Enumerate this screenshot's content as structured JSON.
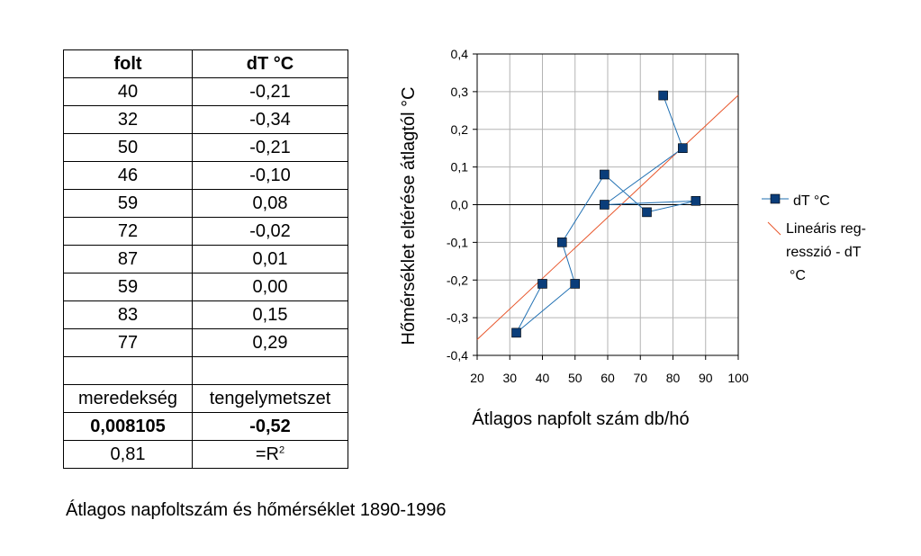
{
  "table": {
    "header": [
      "folt",
      "dT °C"
    ],
    "rows": [
      [
        "40",
        "-0,21"
      ],
      [
        "32",
        "-0,34"
      ],
      [
        "50",
        "-0,21"
      ],
      [
        "46",
        "-0,10"
      ],
      [
        "59",
        "0,08"
      ],
      [
        "72",
        "-0,02"
      ],
      [
        "87",
        "0,01"
      ],
      [
        "59",
        "0,00"
      ],
      [
        "83",
        "0,15"
      ],
      [
        "77",
        "0,29"
      ],
      [
        "",
        ""
      ]
    ],
    "stats_labels": [
      "meredekség",
      "tengelymetszet"
    ],
    "stats_values": [
      "0,008105",
      "-0,52"
    ],
    "r2_value": "0,81",
    "r2_label_prefix": "=R",
    "r2_label_sup": "2"
  },
  "caption": "Átlagos napfoltszám és hőmérséklet 1890-1996",
  "chart_data": {
    "type": "scatter",
    "xlabel": "Átlagos napfolt szám db/hó",
    "ylabel": "Hőmérséklet eltérése átlagtól °C",
    "xlim": [
      20,
      100
    ],
    "ylim": [
      -0.4,
      0.4
    ],
    "x_ticks": [
      20,
      30,
      40,
      50,
      60,
      70,
      80,
      90,
      100
    ],
    "y_ticks": [
      -0.4,
      -0.3,
      -0.2,
      -0.1,
      0.0,
      0.1,
      0.2,
      0.3,
      0.4
    ],
    "x_tick_labels": [
      "20",
      "30",
      "40",
      "50",
      "60",
      "70",
      "80",
      "90",
      "100"
    ],
    "y_tick_labels": [
      "-0,4",
      "-0,3",
      "-0,2",
      "-0,1",
      "0,0",
      "0,1",
      "0,2",
      "0,3",
      "0,4"
    ],
    "grid": true,
    "legend_position": "right",
    "series": [
      {
        "name": "dT °C",
        "color": "#0a3d7a",
        "line_color": "#1f6fb2",
        "connected": true,
        "points": [
          {
            "x": 40,
            "y": -0.21
          },
          {
            "x": 32,
            "y": -0.34
          },
          {
            "x": 50,
            "y": -0.21
          },
          {
            "x": 46,
            "y": -0.1
          },
          {
            "x": 59,
            "y": 0.08
          },
          {
            "x": 72,
            "y": -0.02
          },
          {
            "x": 87,
            "y": 0.01
          },
          {
            "x": 59,
            "y": 0.0
          },
          {
            "x": 83,
            "y": 0.15
          },
          {
            "x": 77,
            "y": 0.29
          }
        ]
      }
    ],
    "regression": {
      "legend_lines": [
        "Lineáris reg-",
        "resszió - dT",
        "°C"
      ],
      "color": "#e8552a",
      "slope": 0.008105,
      "intercept": -0.52
    }
  }
}
